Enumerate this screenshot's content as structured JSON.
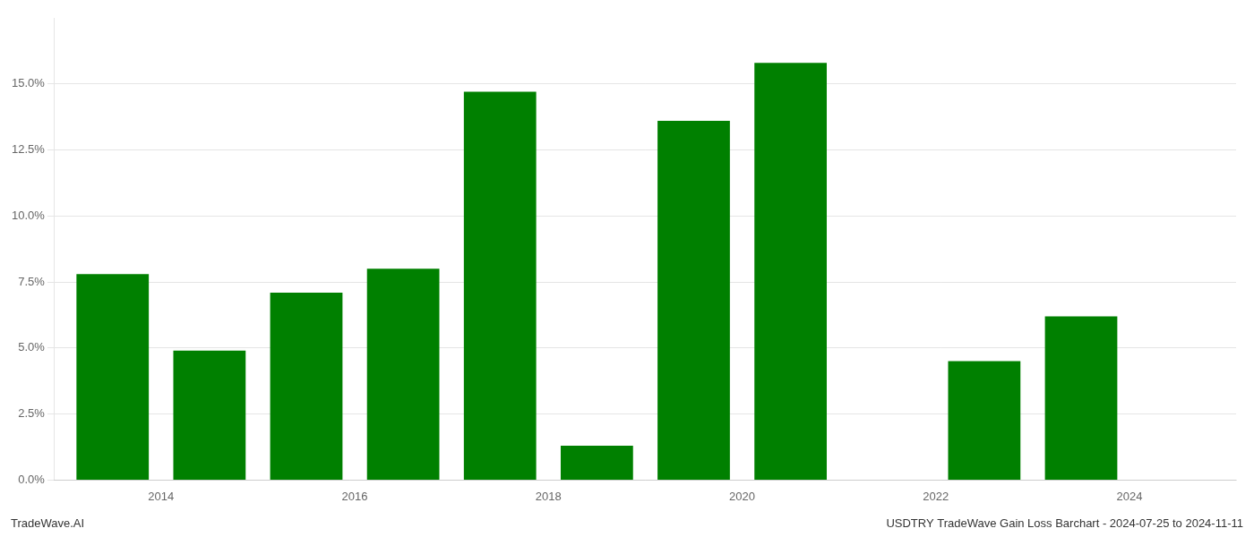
{
  "chart_data": {
    "type": "bar",
    "x": [
      2013,
      2014,
      2015,
      2016,
      2017,
      2018,
      2019,
      2020,
      2022,
      2023
    ],
    "values": [
      0.078,
      0.049,
      0.071,
      0.08,
      0.147,
      0.013,
      0.136,
      0.158,
      0.045,
      0.062
    ],
    "color": "#008000",
    "xlim": [
      2012.4,
      2024.6
    ],
    "xticks": [
      {
        "value": 2013.5,
        "label": "2014"
      },
      {
        "value": 2015.5,
        "label": "2016"
      },
      {
        "value": 2017.5,
        "label": "2018"
      },
      {
        "value": 2019.5,
        "label": "2020"
      },
      {
        "value": 2021.5,
        "label": "2022"
      },
      {
        "value": 2023.5,
        "label": "2024"
      }
    ],
    "ylim": [
      0.0,
      0.175
    ],
    "yticks": [
      {
        "value": 0.0,
        "label": "0.0%"
      },
      {
        "value": 0.025,
        "label": "2.5%"
      },
      {
        "value": 0.05,
        "label": "5.0%"
      },
      {
        "value": 0.075,
        "label": "7.5%"
      },
      {
        "value": 0.1,
        "label": "10.0%"
      },
      {
        "value": 0.125,
        "label": "12.5%"
      },
      {
        "value": 0.15,
        "label": "15.0%"
      }
    ],
    "grid": true,
    "annotations": [
      "TradeWave.AI",
      "USDTRY TradeWave Gain Loss Barchart - 2024-07-25 to 2024-11-11"
    ]
  }
}
